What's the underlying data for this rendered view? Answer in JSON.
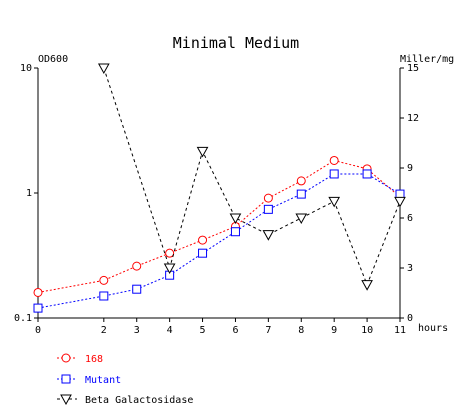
{
  "chart_data": {
    "type": "line",
    "title": "Minimal Medium",
    "xlabel": "hours",
    "ylabel_left": "OD600",
    "ylabel_right": "Miller/mg",
    "x_ticks": [
      0,
      2,
      3,
      4,
      5,
      6,
      7,
      8,
      9,
      10,
      11
    ],
    "xlim": [
      0,
      11
    ],
    "y_left_scale": "log",
    "y_left_range": [
      0.1,
      10
    ],
    "y_left_ticks": [
      0.1,
      1,
      10
    ],
    "y_left_tick_labels": [
      "0.1",
      "1",
      "10"
    ],
    "y_right_range": [
      0,
      15
    ],
    "y_right_ticks": [
      0,
      3,
      6,
      9,
      12,
      15
    ],
    "grid": false,
    "legend_position": "bottom-left",
    "series": [
      {
        "name": "168",
        "axis": "left",
        "color": "#ff0000",
        "marker": "circle",
        "line": "dotted",
        "x": [
          0,
          2,
          3,
          4,
          5,
          6,
          7,
          8,
          9,
          10,
          11
        ],
        "y": [
          0.16,
          0.2,
          0.26,
          0.33,
          0.42,
          0.54,
          0.91,
          1.25,
          1.82,
          1.56,
          0.93
        ]
      },
      {
        "name": "Mutant",
        "axis": "left",
        "color": "#0000ff",
        "marker": "square",
        "line": "dotted",
        "x": [
          0,
          2,
          3,
          4,
          5,
          6,
          7,
          8,
          9,
          10,
          11
        ],
        "y": [
          0.12,
          0.15,
          0.17,
          0.22,
          0.33,
          0.49,
          0.74,
          0.98,
          1.42,
          1.42,
          0.98
        ]
      },
      {
        "name": "Beta Galactosidase",
        "axis": "right",
        "color": "#000000",
        "marker": "triangle-down",
        "line": "dashed",
        "x": [
          2,
          4,
          5,
          6,
          7,
          8,
          9,
          10,
          11
        ],
        "y": [
          15,
          3,
          10,
          6,
          5,
          6,
          7,
          2,
          7
        ]
      }
    ]
  }
}
